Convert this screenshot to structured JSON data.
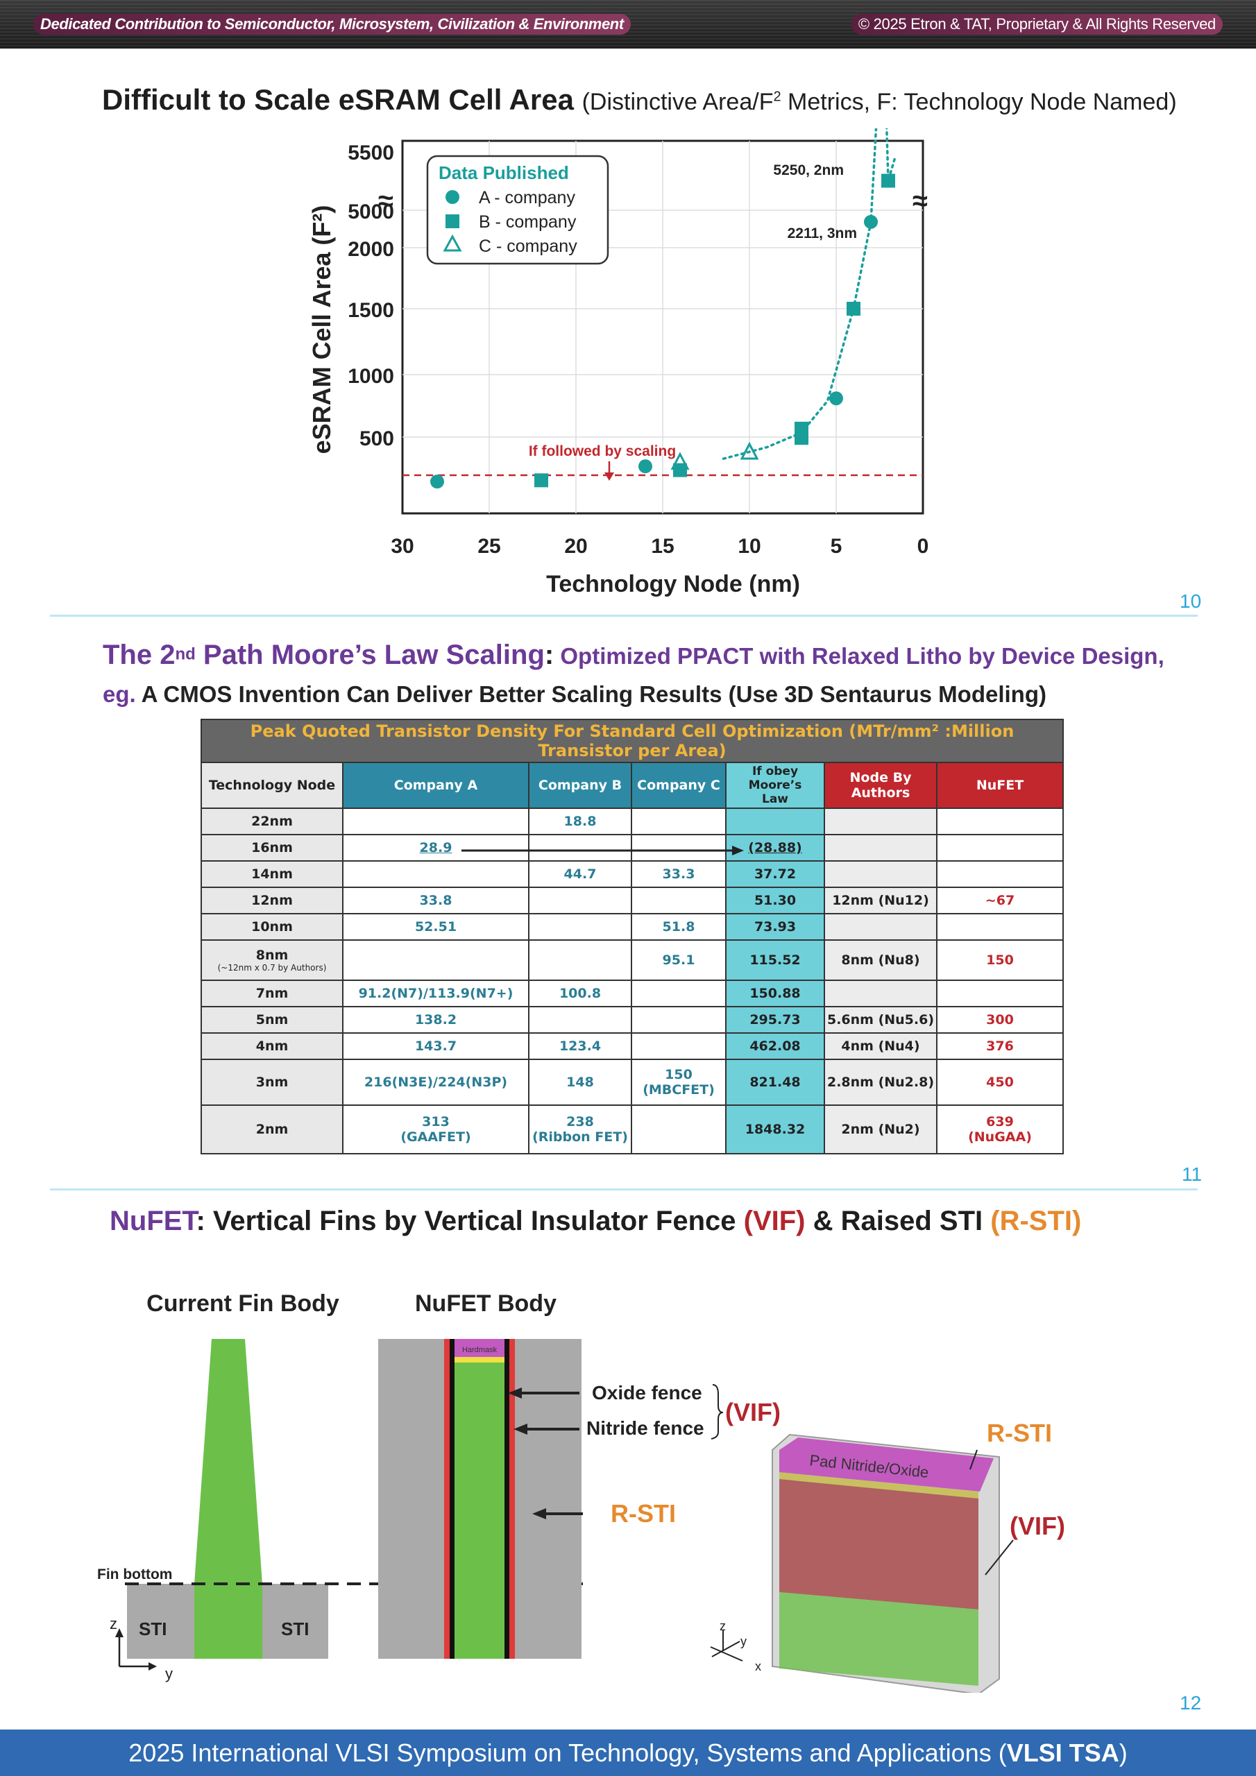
{
  "header": {
    "left": "Dedicated Contribution to Semiconductor, Microsystem, Civilization & Environment",
    "right": "© 2025 Etron & TAT, Proprietary & All Rights Reserved"
  },
  "slide1": {
    "title_main": "Difficult to Scale eSRAM Cell Area",
    "title_sub_a": "(Distinctive Area/F",
    "title_sub_sup": "2",
    "title_sub_b": " Metrics, F: Technology Node Named)",
    "page": "10"
  },
  "chart_data": {
    "type": "scatter",
    "title": "",
    "xlabel": "Technology Node (nm)",
    "ylabel": "eSRAM Cell Area (F²)",
    "xlim": [
      30,
      0
    ],
    "x_ticks": [
      "30",
      "25",
      "20",
      "15",
      "10",
      "5",
      "0"
    ],
    "y_ticks": [
      "500",
      "1000",
      "1500",
      "2000",
      "5000",
      "5500"
    ],
    "y_axis_break": true,
    "legend": {
      "title": "Data Published",
      "entries": [
        "A - company",
        "B - company",
        "C - company"
      ],
      "placement": "top-left"
    },
    "series": [
      {
        "name": "A - company",
        "marker": "circle",
        "points": [
          [
            28,
            150
          ],
          [
            16,
            270
          ],
          [
            5,
            820
          ],
          [
            3,
            2211
          ]
        ]
      },
      {
        "name": "B - company",
        "marker": "square",
        "points": [
          [
            22,
            160
          ],
          [
            14,
            240
          ],
          [
            7,
            520
          ],
          [
            7,
            590
          ],
          [
            4,
            1500
          ],
          [
            2,
            5250
          ]
        ]
      },
      {
        "name": "C - company",
        "marker": "triangle-open",
        "points": [
          [
            14,
            300
          ],
          [
            10,
            380
          ]
        ]
      }
    ],
    "reference_line": {
      "label": "If followed by scaling",
      "y": 200,
      "style": "dashed",
      "color": "#c1272d"
    },
    "annotations": [
      "5250, 2nm",
      "2211, 3nm"
    ],
    "colors": {
      "marker": "#1a9e9a",
      "trend": "#1a9e9a"
    }
  },
  "slide2": {
    "title_a": "The 2",
    "title_sup": "nd",
    "title_b": " Path Moore’s Law Scaling",
    "colon": ":",
    "title_c": " Optimized PPACT with Relaxed Litho by Device Design,",
    "line2_eg": "eg.",
    "line2_rest": " A CMOS Invention Can Deliver Better Scaling Results (Use 3D Sentaurus Modeling)",
    "page": "11",
    "table": {
      "caption": "Peak Quoted Transistor Density For Standard Cell Optimization (MTr/mm² :Million Transistor per Area)",
      "headers": [
        "Technology Node",
        "Company A",
        "Company B",
        "Company C",
        "If obey Moore’s Law",
        "Node By Authors",
        "NuFET"
      ],
      "rows": [
        [
          "22nm",
          "",
          "18.8",
          "",
          "",
          "",
          ""
        ],
        [
          "16nm",
          "28.9",
          "",
          "",
          "(28.88)",
          "",
          ""
        ],
        [
          "14nm",
          "",
          "44.7",
          "33.3",
          "37.72",
          "",
          ""
        ],
        [
          "12nm",
          "33.8",
          "",
          "",
          "51.30",
          "12nm (Nu12)",
          "~67"
        ],
        [
          "10nm",
          "52.51",
          "",
          "51.8",
          "73.93",
          "",
          ""
        ],
        [
          "8nm",
          "",
          "",
          "95.1",
          "115.52",
          "8nm (Nu8)",
          "150"
        ],
        [
          "7nm",
          "91.2(N7)/113.9(N7+)",
          "100.8",
          "",
          "150.88",
          "",
          ""
        ],
        [
          "5nm",
          "138.2",
          "",
          "",
          "295.73",
          "5.6nm (Nu5.6)",
          "300"
        ],
        [
          "4nm",
          "143.7",
          "123.4",
          "",
          "462.08",
          "4nm (Nu4)",
          "376"
        ],
        [
          "3nm",
          "216(N3E)/224(N3P)",
          "148",
          "150",
          "821.48",
          "2.8nm (Nu2.8)",
          "450"
        ],
        [
          "2nm",
          "313",
          "238",
          "",
          "1848.32",
          "2nm (Nu2)",
          "639"
        ]
      ],
      "notes": {
        "8nm": "(~12nm x 0.7 by Authors)",
        "3nm_c": "(MBCFET)",
        "2nm_a": "(GAAFET)",
        "2nm_b": "(Ribbon FET)",
        "2nm_nufet": "(NuGAA)"
      }
    }
  },
  "slide3": {
    "title_a": "NuFET",
    "title_b": ": Vertical Fins by Vertical Insulator Fence ",
    "vif": "(VIF)",
    "amp": " & Raised STI ",
    "rsti": "(R-STI)",
    "page": "12",
    "labels": {
      "current": "Current Fin Body",
      "nufet": "NuFET Body",
      "fin_bottom": "Fin bottom",
      "sti": "STI",
      "hardmask": "Hardmask",
      "oxide": "Oxide fence",
      "nitride": "Nitride fence",
      "vif": "(VIF)",
      "rsti": "R-STI",
      "pad": "Pad Nitride/Oxide",
      "z": "z",
      "y": "y",
      "x": "x"
    }
  },
  "footer": {
    "a": "2025 International VLSI Symposium on Technology, Systems and Applications (",
    "b": "VLSI TSA",
    "c": ")"
  }
}
